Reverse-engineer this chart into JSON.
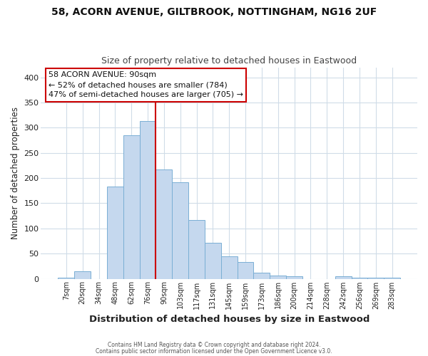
{
  "title_line1": "58, ACORN AVENUE, GILTBROOK, NOTTINGHAM, NG16 2UF",
  "title_line2": "Size of property relative to detached houses in Eastwood",
  "xlabel": "Distribution of detached houses by size in Eastwood",
  "ylabel": "Number of detached properties",
  "bar_labels": [
    "7sqm",
    "20sqm",
    "34sqm",
    "48sqm",
    "62sqm",
    "76sqm",
    "90sqm",
    "103sqm",
    "117sqm",
    "131sqm",
    "145sqm",
    "159sqm",
    "173sqm",
    "186sqm",
    "200sqm",
    "214sqm",
    "228sqm",
    "242sqm",
    "256sqm",
    "269sqm",
    "283sqm"
  ],
  "bar_heights": [
    2,
    15,
    0,
    183,
    285,
    313,
    217,
    191,
    116,
    72,
    45,
    33,
    12,
    7,
    5,
    0,
    0,
    5,
    2,
    2,
    2
  ],
  "bar_color": "#c5d8ee",
  "bar_edge_color": "#7aafd4",
  "vline_color": "#cc0000",
  "annotation_title": "58 ACORN AVENUE: 90sqm",
  "annotation_line1": "← 52% of detached houses are smaller (784)",
  "annotation_line2": "47% of semi-detached houses are larger (705) →",
  "annotation_box_color": "#ffffff",
  "annotation_box_edge": "#cc0000",
  "ylim": [
    0,
    420
  ],
  "yticks": [
    0,
    50,
    100,
    150,
    200,
    250,
    300,
    350,
    400
  ],
  "bg_color": "#ffffff",
  "fig_bg_color": "#ffffff",
  "grid_color": "#d0dce8",
  "footer1": "Contains HM Land Registry data © Crown copyright and database right 2024.",
  "footer2": "Contains public sector information licensed under the Open Government Licence v3.0."
}
